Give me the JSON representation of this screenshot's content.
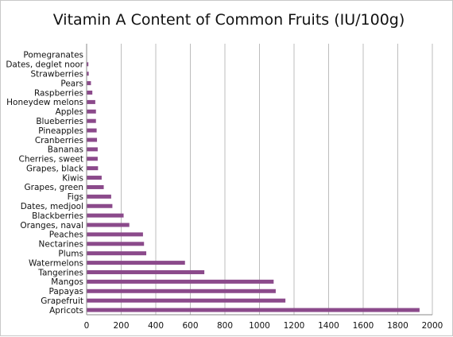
{
  "chart_data": {
    "type": "bar",
    "orientation": "horizontal",
    "title": "Vitamin A Content of Common Fruits (IU/100g)",
    "xlabel": "",
    "ylabel": "",
    "xlim": [
      0,
      2000
    ],
    "xticks": [
      0,
      200,
      400,
      600,
      800,
      1000,
      1200,
      1400,
      1600,
      1800,
      2000
    ],
    "grid": true,
    "legend": "none",
    "bar_color": "#8b4a8b",
    "categories": [
      "Pomegranates",
      "Dates, deglet noor",
      "Strawberries",
      "Pears",
      "Raspberries",
      "Honeydew melons",
      "Apples",
      "Blueberries",
      "Pineapples",
      "Cranberries",
      "Bananas",
      "Cherries, sweet",
      "Grapes, black",
      "Kiwis",
      "Grapes, green",
      "Figs",
      "Dates, medjool",
      "Blackberries",
      "Oranges, naval",
      "Peaches",
      "Nectarines",
      "Plums",
      "Watermelons",
      "Tangerines",
      "Mangos",
      "Papayas",
      "Grapefruit",
      "Apricots"
    ],
    "values": [
      0,
      10,
      12,
      25,
      33,
      50,
      54,
      54,
      58,
      60,
      64,
      64,
      66,
      87,
      99,
      142,
      149,
      214,
      247,
      326,
      332,
      345,
      569,
      681,
      1082,
      1094,
      1150,
      1926
    ]
  }
}
